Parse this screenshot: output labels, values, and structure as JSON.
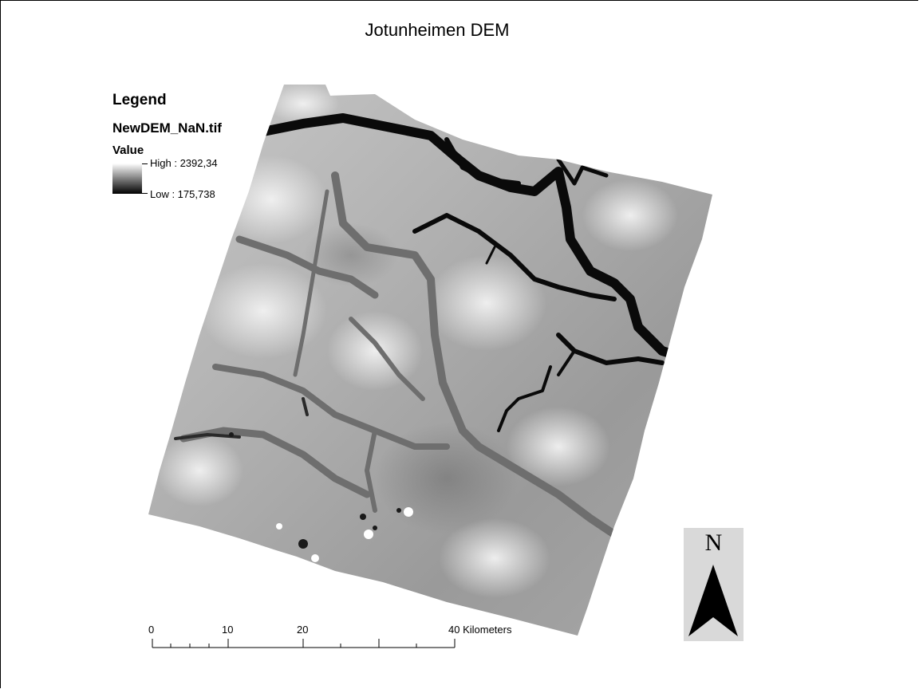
{
  "map": {
    "title": "Jotunheimen DEM",
    "layer_type": "raster DEM (grayscale elevation)"
  },
  "legend": {
    "heading": "Legend",
    "layer_name": "NewDEM_NaN.tif",
    "field": "Value",
    "high_label": "High : 2392,34",
    "low_label": "Low : 175,738",
    "high_value": 2392.34,
    "low_value": 175.738,
    "ramp_colors": [
      "#ffffff",
      "#000000"
    ]
  },
  "scale_bar": {
    "labels": [
      "0",
      "10",
      "20",
      "40 Kilometers"
    ],
    "values_km": [
      0,
      10,
      20,
      40
    ],
    "unit": "Kilometers"
  },
  "north_arrow": {
    "letter": "N",
    "icon": "north-arrow-icon"
  }
}
